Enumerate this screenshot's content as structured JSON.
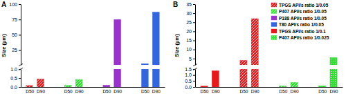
{
  "chart_data": [
    {
      "type": "bar",
      "title": "A",
      "ylabel": "Size (μm)",
      "categories": [
        "D50",
        "D90"
      ],
      "series": [
        {
          "name": "TPGS API/s ratio 1/0.05",
          "color": "#e41a1c",
          "line_style": "hatched",
          "values": [
            0.08,
            0.44
          ]
        },
        {
          "name": "P407 API/s ratio 1/0.05",
          "color": "#33dd33",
          "line_style": "hatched",
          "values": [
            0.09,
            0.41
          ]
        },
        {
          "name": "P188 API/s ratio 1/0.05",
          "color": "#9933cc",
          "line_style": "solid",
          "values": [
            0.1,
            75
          ]
        },
        {
          "name": "T80 API/s ratio 1/0.05",
          "color": "#3366dd",
          "line_style": "solid",
          "values": [
            3,
            87
          ]
        }
      ],
      "ylim": [
        0,
        100
      ],
      "ylim_break": 1,
      "yticks": [
        {
          "value": 0,
          "label": "0.0"
        },
        {
          "value": 0.5,
          "label": "0.5"
        },
        {
          "value": 1,
          "label": "1.0"
        },
        25,
        50,
        75,
        100
      ]
    },
    {
      "type": "bar",
      "title": "B",
      "ylabel": "Size (μm)",
      "categories": [
        "D50",
        "D90"
      ],
      "series": [
        {
          "name": "TPGS API/s ratio 1/0.1",
          "color": "#e41a1c",
          "line_style": "solid",
          "values": [
            0.07,
            1.35
          ]
        },
        {
          "name": "TPGS API/s ratio 1/0.05",
          "color": "#e41a1c",
          "line_style": "hatched",
          "values": [
            4,
            27
          ]
        },
        {
          "name": "P407 API/s ratio 1/0.05",
          "color": "#33dd33",
          "line_style": "hatched",
          "values": [
            0.08,
            0.38
          ]
        },
        {
          "name": "P407 API/s ratio 1/0.025",
          "color": "#33dd33",
          "line_style": "dotted",
          "values": [
            0.1,
            5.5
          ]
        }
      ],
      "ylim": [
        0,
        35
      ],
      "ylim_break": 1.5,
      "yticks": [
        {
          "value": 0,
          "label": "0.0"
        },
        {
          "value": 0.5,
          "label": "0.5"
        },
        {
          "value": 1,
          "label": "1.0"
        },
        {
          "value": 1.5,
          "label": "1.5"
        },
        5,
        10,
        15,
        20,
        25,
        30,
        35
      ]
    }
  ]
}
